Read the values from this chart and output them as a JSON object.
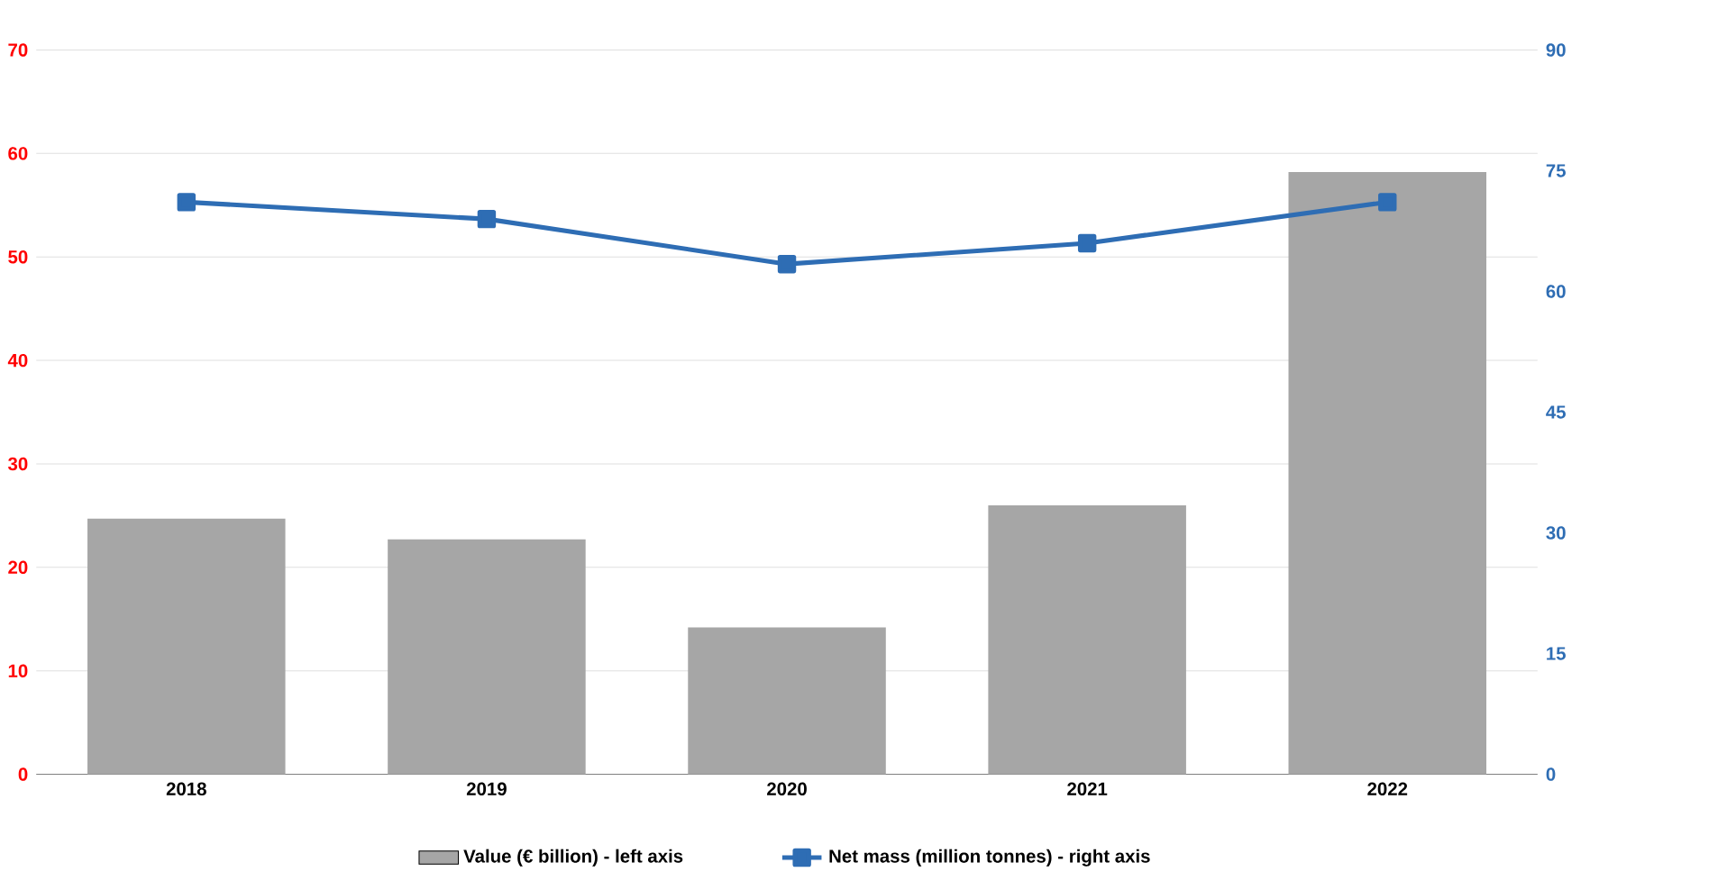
{
  "chart_data": {
    "type": "bar",
    "categories": [
      "2018",
      "2019",
      "2020",
      "2021",
      "2022"
    ],
    "series": [
      {
        "name": "Value (€ billion) - left axis",
        "color": "#a6a6a6",
        "values": [
          24.7,
          22.7,
          14.2,
          26.0,
          58.2
        ]
      },
      {
        "name": "Net mass (million tonnes) - right axis",
        "type": "line",
        "axis": "y2",
        "color": "#2e6db4",
        "values": [
          71.1,
          69.0,
          63.4,
          66.0,
          71.1
        ]
      }
    ],
    "ylim": [
      0,
      70
    ],
    "yticks": [
      0,
      10,
      20,
      30,
      40,
      50,
      60,
      70
    ],
    "y2lim": [
      0,
      90
    ],
    "y2ticks": [
      0,
      15,
      30,
      45,
      60,
      75,
      90
    ],
    "grid": "y",
    "legend": "bottom",
    "marker": "square"
  }
}
